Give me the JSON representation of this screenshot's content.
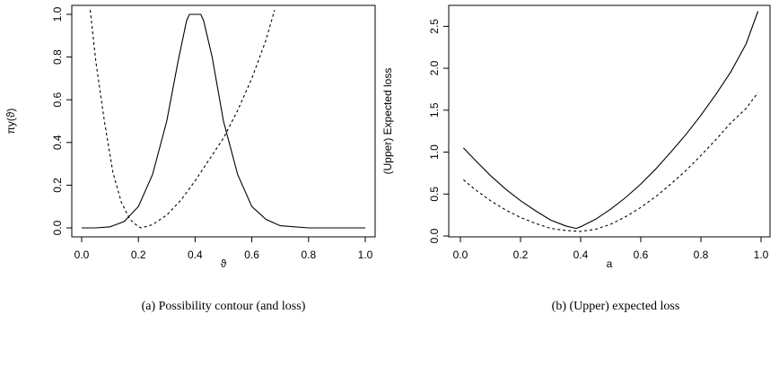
{
  "chart_data": [
    {
      "type": "line",
      "caption": "(a) Possibility contour (and loss)",
      "xlabel": "ϑ",
      "ylabel": "πy(ϑ)",
      "xlim": [
        0,
        1
      ],
      "ylim": [
        0,
        1
      ],
      "x_ticks": [
        "0.0",
        "0.2",
        "0.4",
        "0.6",
        "0.8",
        "1.0"
      ],
      "y_ticks": [
        "0.0",
        "0.2",
        "0.4",
        "0.6",
        "0.8",
        "1.0"
      ],
      "grid": false,
      "legend": "none",
      "series": [
        {
          "style": "solid",
          "points": [
            [
              0.0,
              0.0
            ],
            [
              0.05,
              0.0
            ],
            [
              0.1,
              0.005
            ],
            [
              0.15,
              0.03
            ],
            [
              0.2,
              0.1
            ],
            [
              0.25,
              0.25
            ],
            [
              0.3,
              0.5
            ],
            [
              0.34,
              0.78
            ],
            [
              0.37,
              0.97
            ],
            [
              0.38,
              1.0
            ],
            [
              0.42,
              1.0
            ],
            [
              0.43,
              0.97
            ],
            [
              0.46,
              0.8
            ],
            [
              0.5,
              0.5
            ],
            [
              0.55,
              0.25
            ],
            [
              0.6,
              0.1
            ],
            [
              0.65,
              0.04
            ],
            [
              0.7,
              0.01
            ],
            [
              0.8,
              0.0
            ],
            [
              1.0,
              0.0
            ]
          ]
        },
        {
          "style": "dashed",
          "points": [
            [
              0.03,
              1.02
            ],
            [
              0.05,
              0.78
            ],
            [
              0.08,
              0.5
            ],
            [
              0.11,
              0.26
            ],
            [
              0.14,
              0.12
            ],
            [
              0.17,
              0.04
            ],
            [
              0.2,
              0.005
            ],
            [
              0.21,
              0.0
            ],
            [
              0.25,
              0.015
            ],
            [
              0.3,
              0.06
            ],
            [
              0.35,
              0.13
            ],
            [
              0.4,
              0.22
            ],
            [
              0.45,
              0.32
            ],
            [
              0.5,
              0.42
            ],
            [
              0.55,
              0.55
            ],
            [
              0.6,
              0.7
            ],
            [
              0.65,
              0.88
            ],
            [
              0.68,
              1.02
            ]
          ]
        }
      ]
    },
    {
      "type": "line",
      "caption": "(b) (Upper) expected loss",
      "xlabel": "a",
      "ylabel": "(Upper) Expected loss",
      "xlim": [
        0,
        1
      ],
      "ylim": [
        0,
        2.75
      ],
      "x_ticks": [
        "0.0",
        "0.2",
        "0.4",
        "0.6",
        "0.8",
        "1.0"
      ],
      "y_ticks": [
        "0.0",
        "0.5",
        "1.0",
        "1.5",
        "2.0",
        "2.5"
      ],
      "grid": false,
      "legend": "none",
      "series": [
        {
          "style": "solid",
          "points": [
            [
              0.01,
              1.05
            ],
            [
              0.05,
              0.9
            ],
            [
              0.1,
              0.72
            ],
            [
              0.15,
              0.56
            ],
            [
              0.2,
              0.42
            ],
            [
              0.25,
              0.3
            ],
            [
              0.3,
              0.19
            ],
            [
              0.35,
              0.12
            ],
            [
              0.385,
              0.09
            ],
            [
              0.4,
              0.11
            ],
            [
              0.45,
              0.2
            ],
            [
              0.5,
              0.32
            ],
            [
              0.55,
              0.46
            ],
            [
              0.6,
              0.62
            ],
            [
              0.65,
              0.8
            ],
            [
              0.7,
              1.0
            ],
            [
              0.75,
              1.21
            ],
            [
              0.8,
              1.44
            ],
            [
              0.85,
              1.69
            ],
            [
              0.9,
              1.96
            ],
            [
              0.95,
              2.29
            ],
            [
              0.99,
              2.68
            ]
          ]
        },
        {
          "style": "dashed",
          "points": [
            [
              0.01,
              0.67
            ],
            [
              0.05,
              0.55
            ],
            [
              0.1,
              0.42
            ],
            [
              0.15,
              0.31
            ],
            [
              0.2,
              0.22
            ],
            [
              0.25,
              0.15
            ],
            [
              0.3,
              0.09
            ],
            [
              0.35,
              0.065
            ],
            [
              0.4,
              0.055
            ],
            [
              0.45,
              0.08
            ],
            [
              0.5,
              0.14
            ],
            [
              0.55,
              0.23
            ],
            [
              0.6,
              0.34
            ],
            [
              0.65,
              0.47
            ],
            [
              0.7,
              0.62
            ],
            [
              0.75,
              0.78
            ],
            [
              0.8,
              0.96
            ],
            [
              0.85,
              1.15
            ],
            [
              0.9,
              1.35
            ],
            [
              0.95,
              1.52
            ],
            [
              0.99,
              1.71
            ]
          ]
        }
      ]
    }
  ]
}
